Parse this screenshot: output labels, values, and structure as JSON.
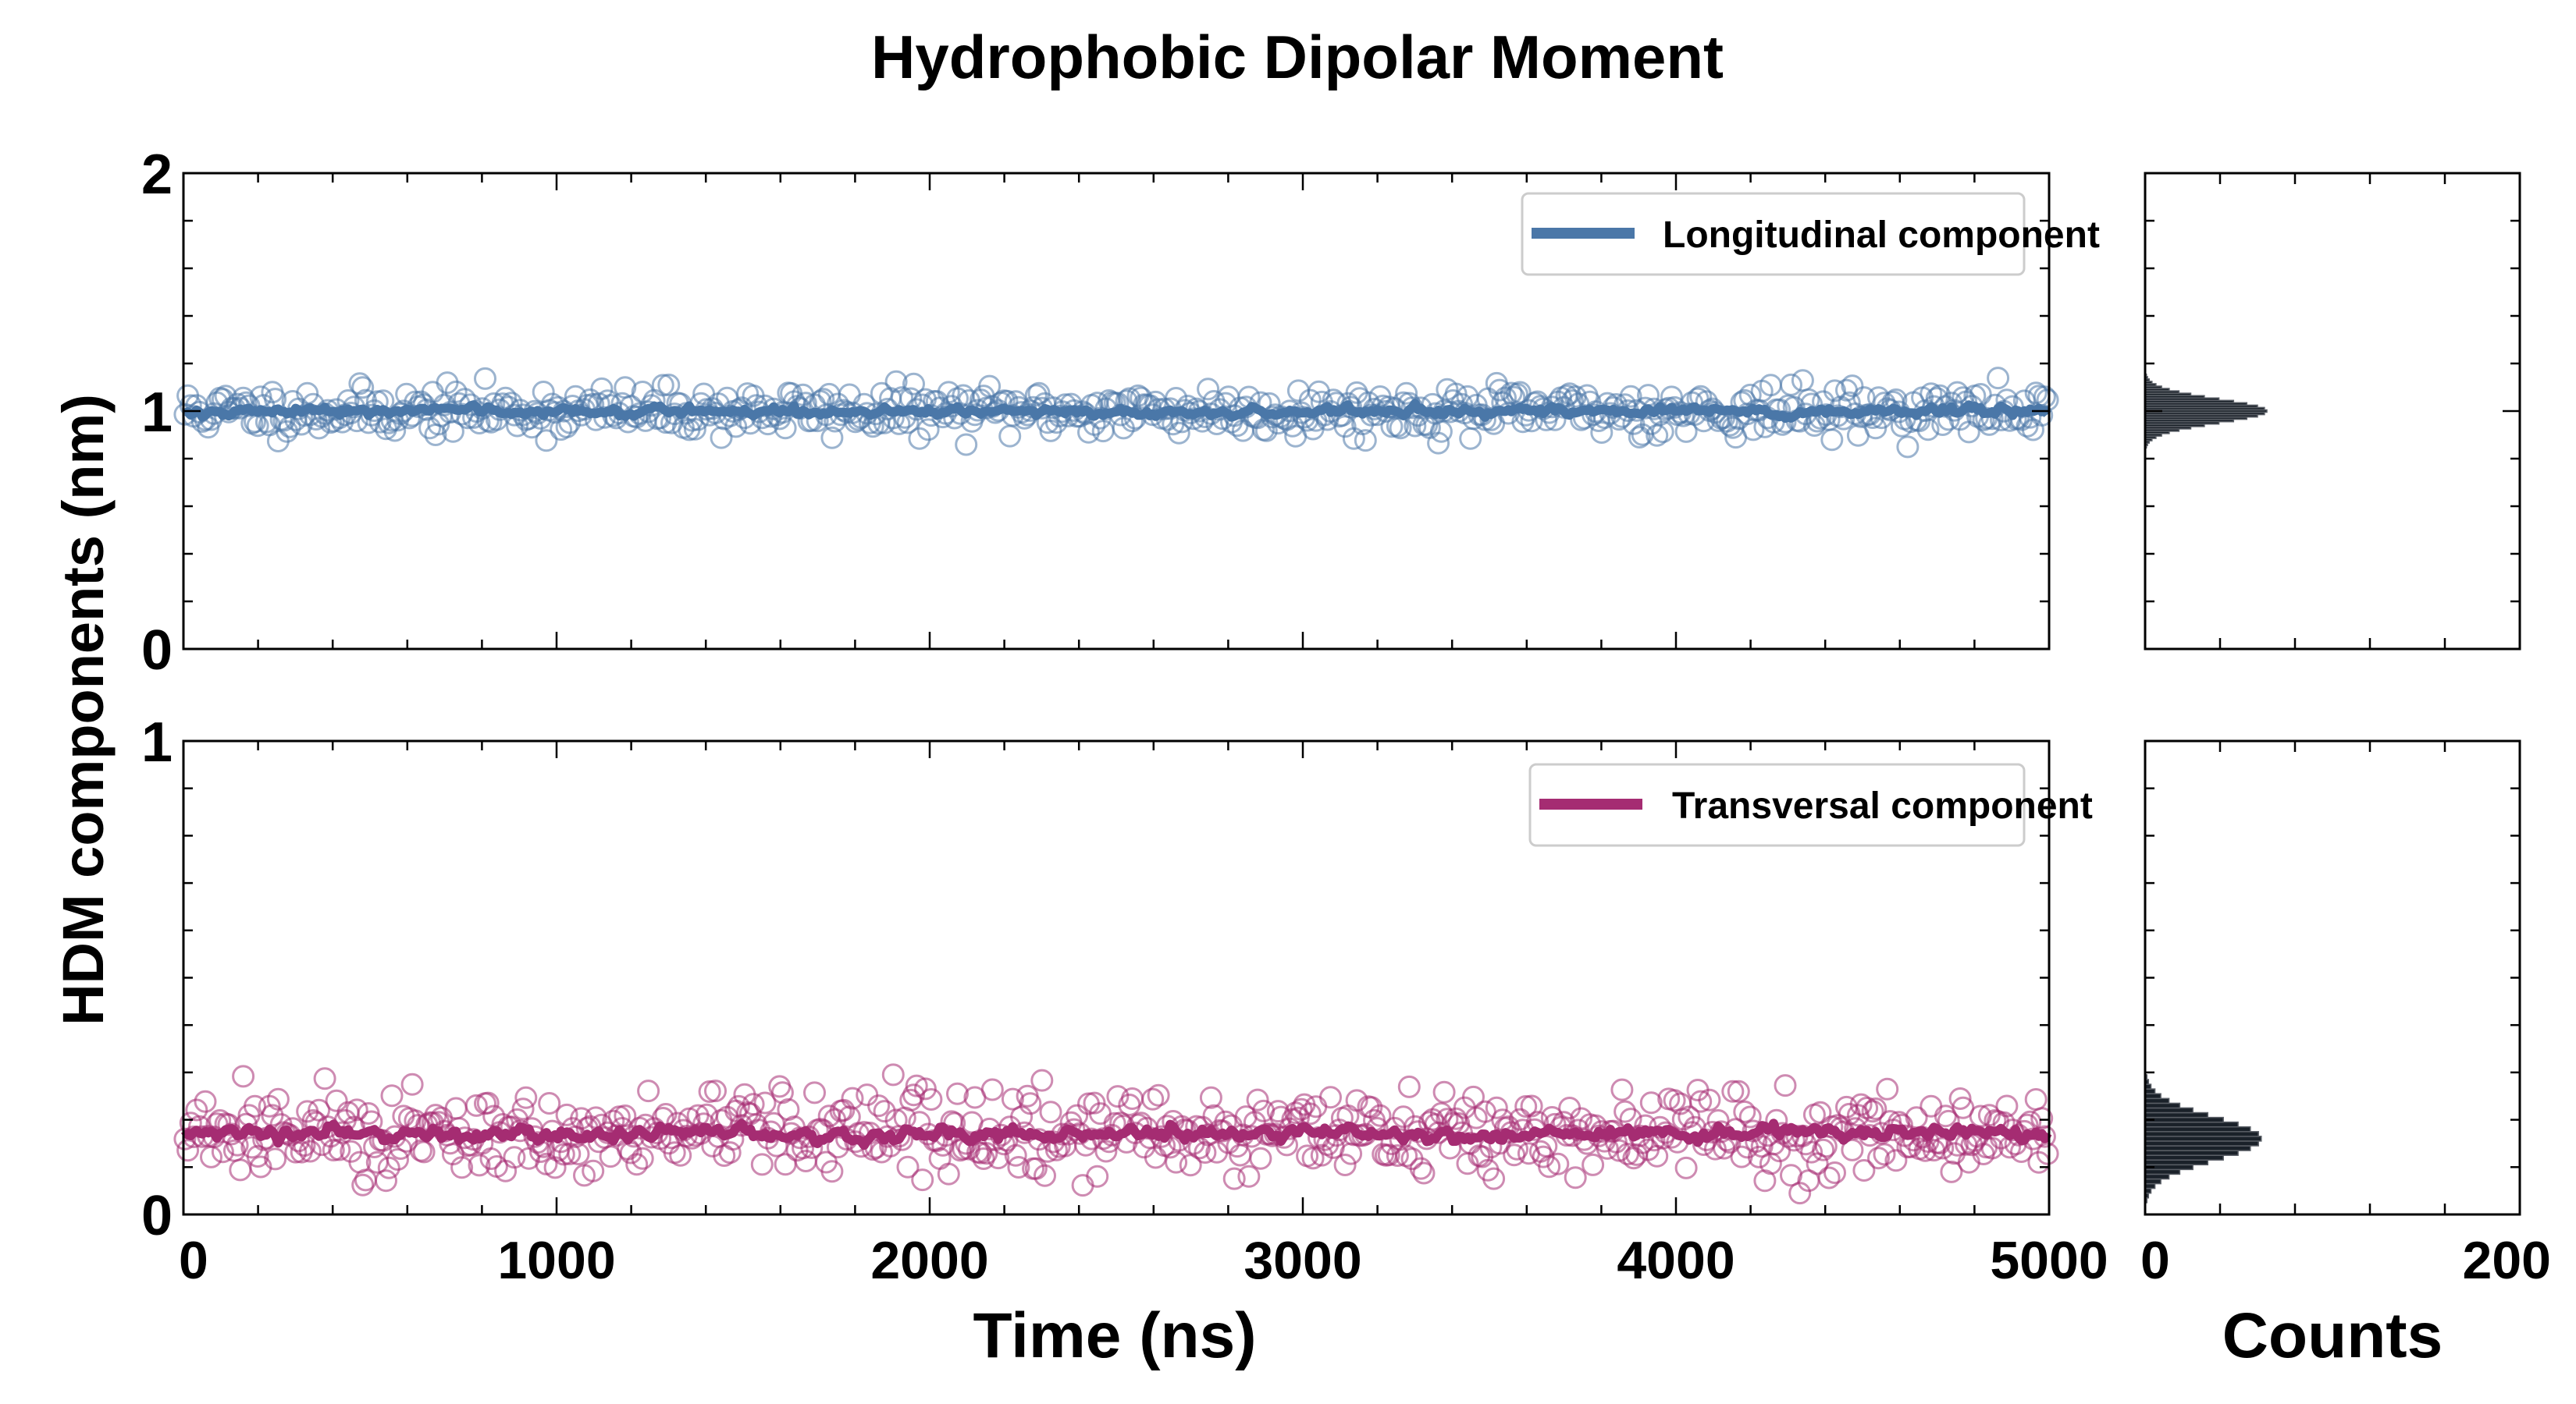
{
  "title": "Hydrophobic Dipolar Moment",
  "ylabel": "HDM components (nm)",
  "xlabel": "Time (ns)",
  "hist_xlabel": "Counts",
  "colors": {
    "longitudinal": "#4a77a8",
    "transversal": "#a52c72",
    "hist": "#1a2129",
    "hist_edge": "#5a5f66",
    "frame": "#000000"
  },
  "chart_data": [
    {
      "id": "top",
      "type": "scatter",
      "title": "Hydrophobic Dipolar Moment",
      "series": [
        {
          "name": "Longitudinal component",
          "mean": 1.0,
          "sd": 0.05,
          "points": 640,
          "seed": 11,
          "smooth_amp": 0.02
        }
      ],
      "legend": "top-right",
      "xlim": [
        0,
        5000
      ],
      "ylim": [
        0,
        2
      ],
      "yticks": [
        0,
        1,
        2
      ],
      "ytick_labels": [
        "0",
        "1",
        "2"
      ],
      "xticks": [
        0,
        1000,
        2000,
        3000,
        4000,
        5000
      ],
      "hist": {
        "xlim": [
          0,
          200
        ],
        "peak_count": 65,
        "center": 1.0,
        "sd": 0.05,
        "bin_width": 0.01
      }
    },
    {
      "id": "bottom",
      "type": "scatter",
      "series": [
        {
          "name": "Transversal component",
          "mean": 0.17,
          "sd": 0.045,
          "points": 640,
          "seed": 27,
          "smooth_amp": 0.015
        }
      ],
      "legend": "top-right",
      "xlim": [
        0,
        5000
      ],
      "ylim": [
        0,
        1
      ],
      "yticks": [
        0,
        1
      ],
      "ytick_labels": [
        "0",
        "1"
      ],
      "xticks": [
        0,
        1000,
        2000,
        3000,
        4000,
        5000
      ],
      "xtick_labels": [
        "0",
        "1000",
        "2000",
        "3000",
        "4000",
        "5000"
      ],
      "hist": {
        "xlim": [
          0,
          200
        ],
        "xtick_labels": [
          "0",
          "200"
        ],
        "peak_count": 62,
        "center": 0.16,
        "sd": 0.045,
        "bin_width": 0.01
      }
    }
  ]
}
